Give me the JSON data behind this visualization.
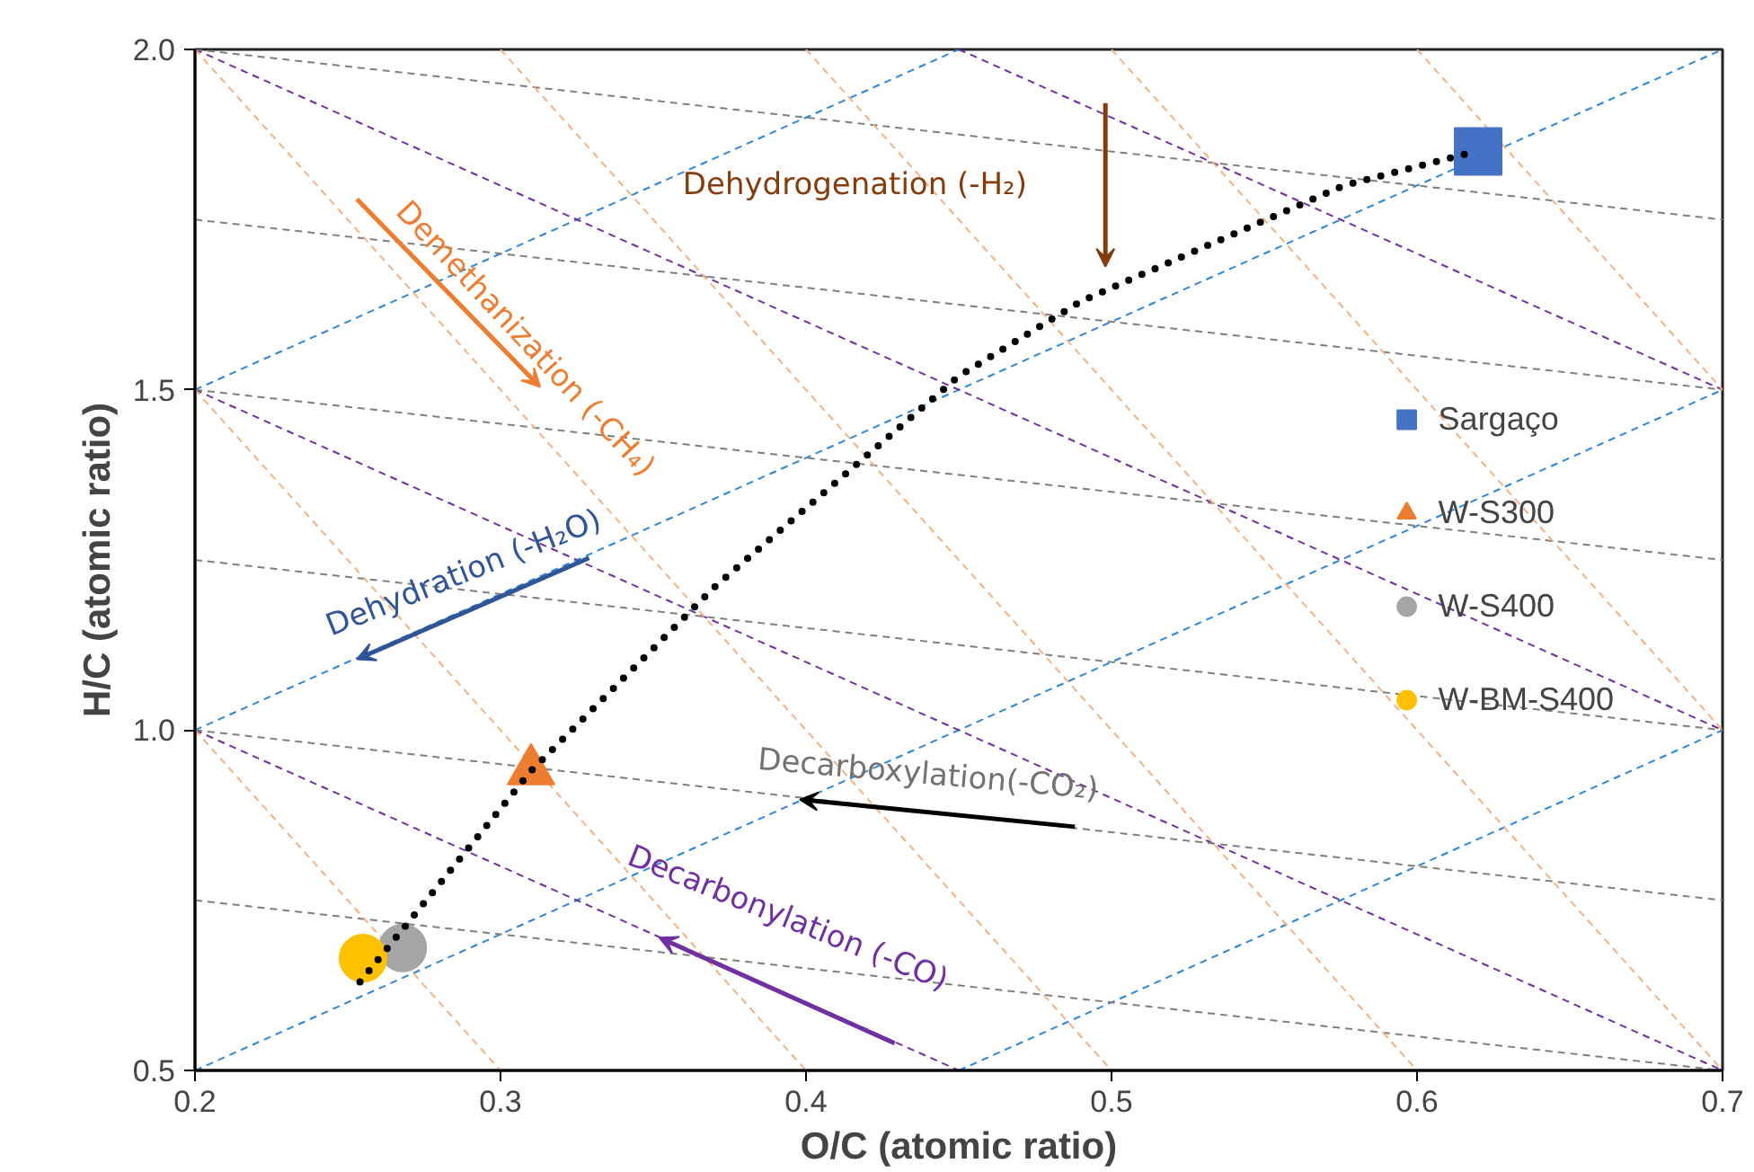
{
  "chart_data": {
    "type": "scatter",
    "xlabel": "O/C (atomic ratio)",
    "ylabel": "H/C (atomic ratio)",
    "xlim": [
      0.2,
      0.7
    ],
    "ylim": [
      0.5,
      2.0
    ],
    "xticks": [
      0.2,
      0.3,
      0.4,
      0.5,
      0.6,
      0.7
    ],
    "yticks": [
      0.5,
      {
        "value": 1,
        "label": "1.0"
      },
      1.5,
      {
        "value": 2,
        "label": "2.0"
      }
    ],
    "grid": false,
    "legend": "right",
    "series": [
      {
        "type": "line",
        "color": "#2e86d6",
        "line_style": "dashed",
        "x": [
          0.2,
          0.45
        ],
        "values": [
          1.5,
          2.0
        ]
      },
      {
        "type": "line",
        "color": "#2e86d6",
        "line_style": "dashed",
        "x": [
          0.2,
          0.7
        ],
        "values": [
          1.0,
          2.0
        ]
      },
      {
        "type": "line",
        "color": "#2e86d6",
        "line_style": "dashed",
        "x": [
          0.2,
          0.7
        ],
        "values": [
          0.5,
          1.5
        ]
      },
      {
        "type": "line",
        "color": "#2e86d6",
        "line_style": "dashed",
        "x": [
          0.45,
          0.7
        ],
        "values": [
          0.5,
          1.0
        ]
      },
      {
        "type": "line",
        "color": "#7030a0",
        "line_style": "dashed",
        "x": [
          0.45,
          0.7
        ],
        "values": [
          2.0,
          1.5
        ]
      },
      {
        "type": "line",
        "color": "#7030a0",
        "line_style": "dashed",
        "x": [
          0.2,
          0.7
        ],
        "values": [
          2.0,
          1.0
        ]
      },
      {
        "type": "line",
        "color": "#7030a0",
        "line_style": "dashed",
        "x": [
          0.2,
          0.7
        ],
        "values": [
          1.5,
          0.5
        ]
      },
      {
        "type": "line",
        "color": "#7030a0",
        "line_style": "dashed",
        "x": [
          0.2,
          0.45
        ],
        "values": [
          1.0,
          0.5
        ]
      },
      {
        "type": "line",
        "color": "#7f7f7f",
        "line_style": "dashed",
        "x": [
          0.2,
          0.7
        ],
        "values": [
          2.0,
          1.75
        ]
      },
      {
        "type": "line",
        "color": "#7f7f7f",
        "line_style": "dashed",
        "x": [
          0.2,
          0.7
        ],
        "values": [
          1.75,
          1.5
        ]
      },
      {
        "type": "line",
        "color": "#7f7f7f",
        "line_style": "dashed",
        "x": [
          0.2,
          0.7
        ],
        "values": [
          1.5,
          1.25
        ]
      },
      {
        "type": "line",
        "color": "#7f7f7f",
        "line_style": "dashed",
        "x": [
          0.2,
          0.7
        ],
        "values": [
          1.25,
          1.0
        ]
      },
      {
        "type": "line",
        "color": "#7f7f7f",
        "line_style": "dashed",
        "x": [
          0.2,
          0.7
        ],
        "values": [
          1.0,
          0.75
        ]
      },
      {
        "type": "line",
        "color": "#7f7f7f",
        "line_style": "dashed",
        "x": [
          0.2,
          0.7
        ],
        "values": [
          0.75,
          0.5
        ]
      },
      {
        "type": "line",
        "color": "#f4b183",
        "line_style": "dashed",
        "x": [
          0.2,
          0.3
        ],
        "values": [
          1.0,
          0.5
        ]
      },
      {
        "type": "line",
        "color": "#f4b183",
        "line_style": "dashed",
        "x": [
          0.2,
          0.4
        ],
        "values": [
          1.5,
          0.5
        ]
      },
      {
        "type": "line",
        "color": "#f4b183",
        "line_style": "dashed",
        "x": [
          0.2,
          0.5
        ],
        "values": [
          2.0,
          0.5
        ]
      },
      {
        "type": "line",
        "color": "#f4b183",
        "line_style": "dashed",
        "x": [
          0.3,
          0.6
        ],
        "values": [
          2.0,
          0.5
        ]
      },
      {
        "type": "line",
        "color": "#f4b183",
        "line_style": "dashed",
        "x": [
          0.4,
          0.7
        ],
        "values": [
          2.0,
          0.5
        ]
      },
      {
        "type": "line",
        "color": "#f4b183",
        "line_style": "dashed",
        "x": [
          0.5,
          0.7
        ],
        "values": [
          2.0,
          1.0
        ]
      },
      {
        "type": "line",
        "color": "#f4b183",
        "line_style": "dashed",
        "x": [
          0.6,
          0.7
        ],
        "values": [
          2.0,
          1.5
        ]
      },
      {
        "name": "Sargaço",
        "color": "#4472c4",
        "marker": "square",
        "x": [
          0.62
        ],
        "values": [
          1.85
        ]
      },
      {
        "name": "W-S300",
        "color": "#ed7d31",
        "marker": "triangle",
        "x": [
          0.31
        ],
        "values": [
          0.94
        ]
      },
      {
        "name": "W-S400",
        "color": "#a5a5a5",
        "marker": "circle",
        "x": [
          0.268
        ],
        "values": [
          0.68
        ]
      },
      {
        "name": "W-BM-S400",
        "color": "#ffc000",
        "marker": "circle",
        "x": [
          0.255
        ],
        "values": [
          0.665
        ]
      },
      {
        "type": "line",
        "color": "#000000",
        "line_style": "dotted",
        "x": [
          0.254,
          0.31,
          0.37,
          0.45,
          0.49,
          0.576,
          0.619
        ],
        "values": [
          0.63,
          0.94,
          1.21,
          1.52,
          1.63,
          1.8,
          1.85
        ]
      }
    ],
    "annotations": [
      "Demethanization (-CH₄)",
      "Dehydrogenation (-H₂)",
      "Dehydration (-H₂O)",
      "Decarboxylation(-CO₂)",
      "Decarbonylation (-CO)"
    ]
  }
}
